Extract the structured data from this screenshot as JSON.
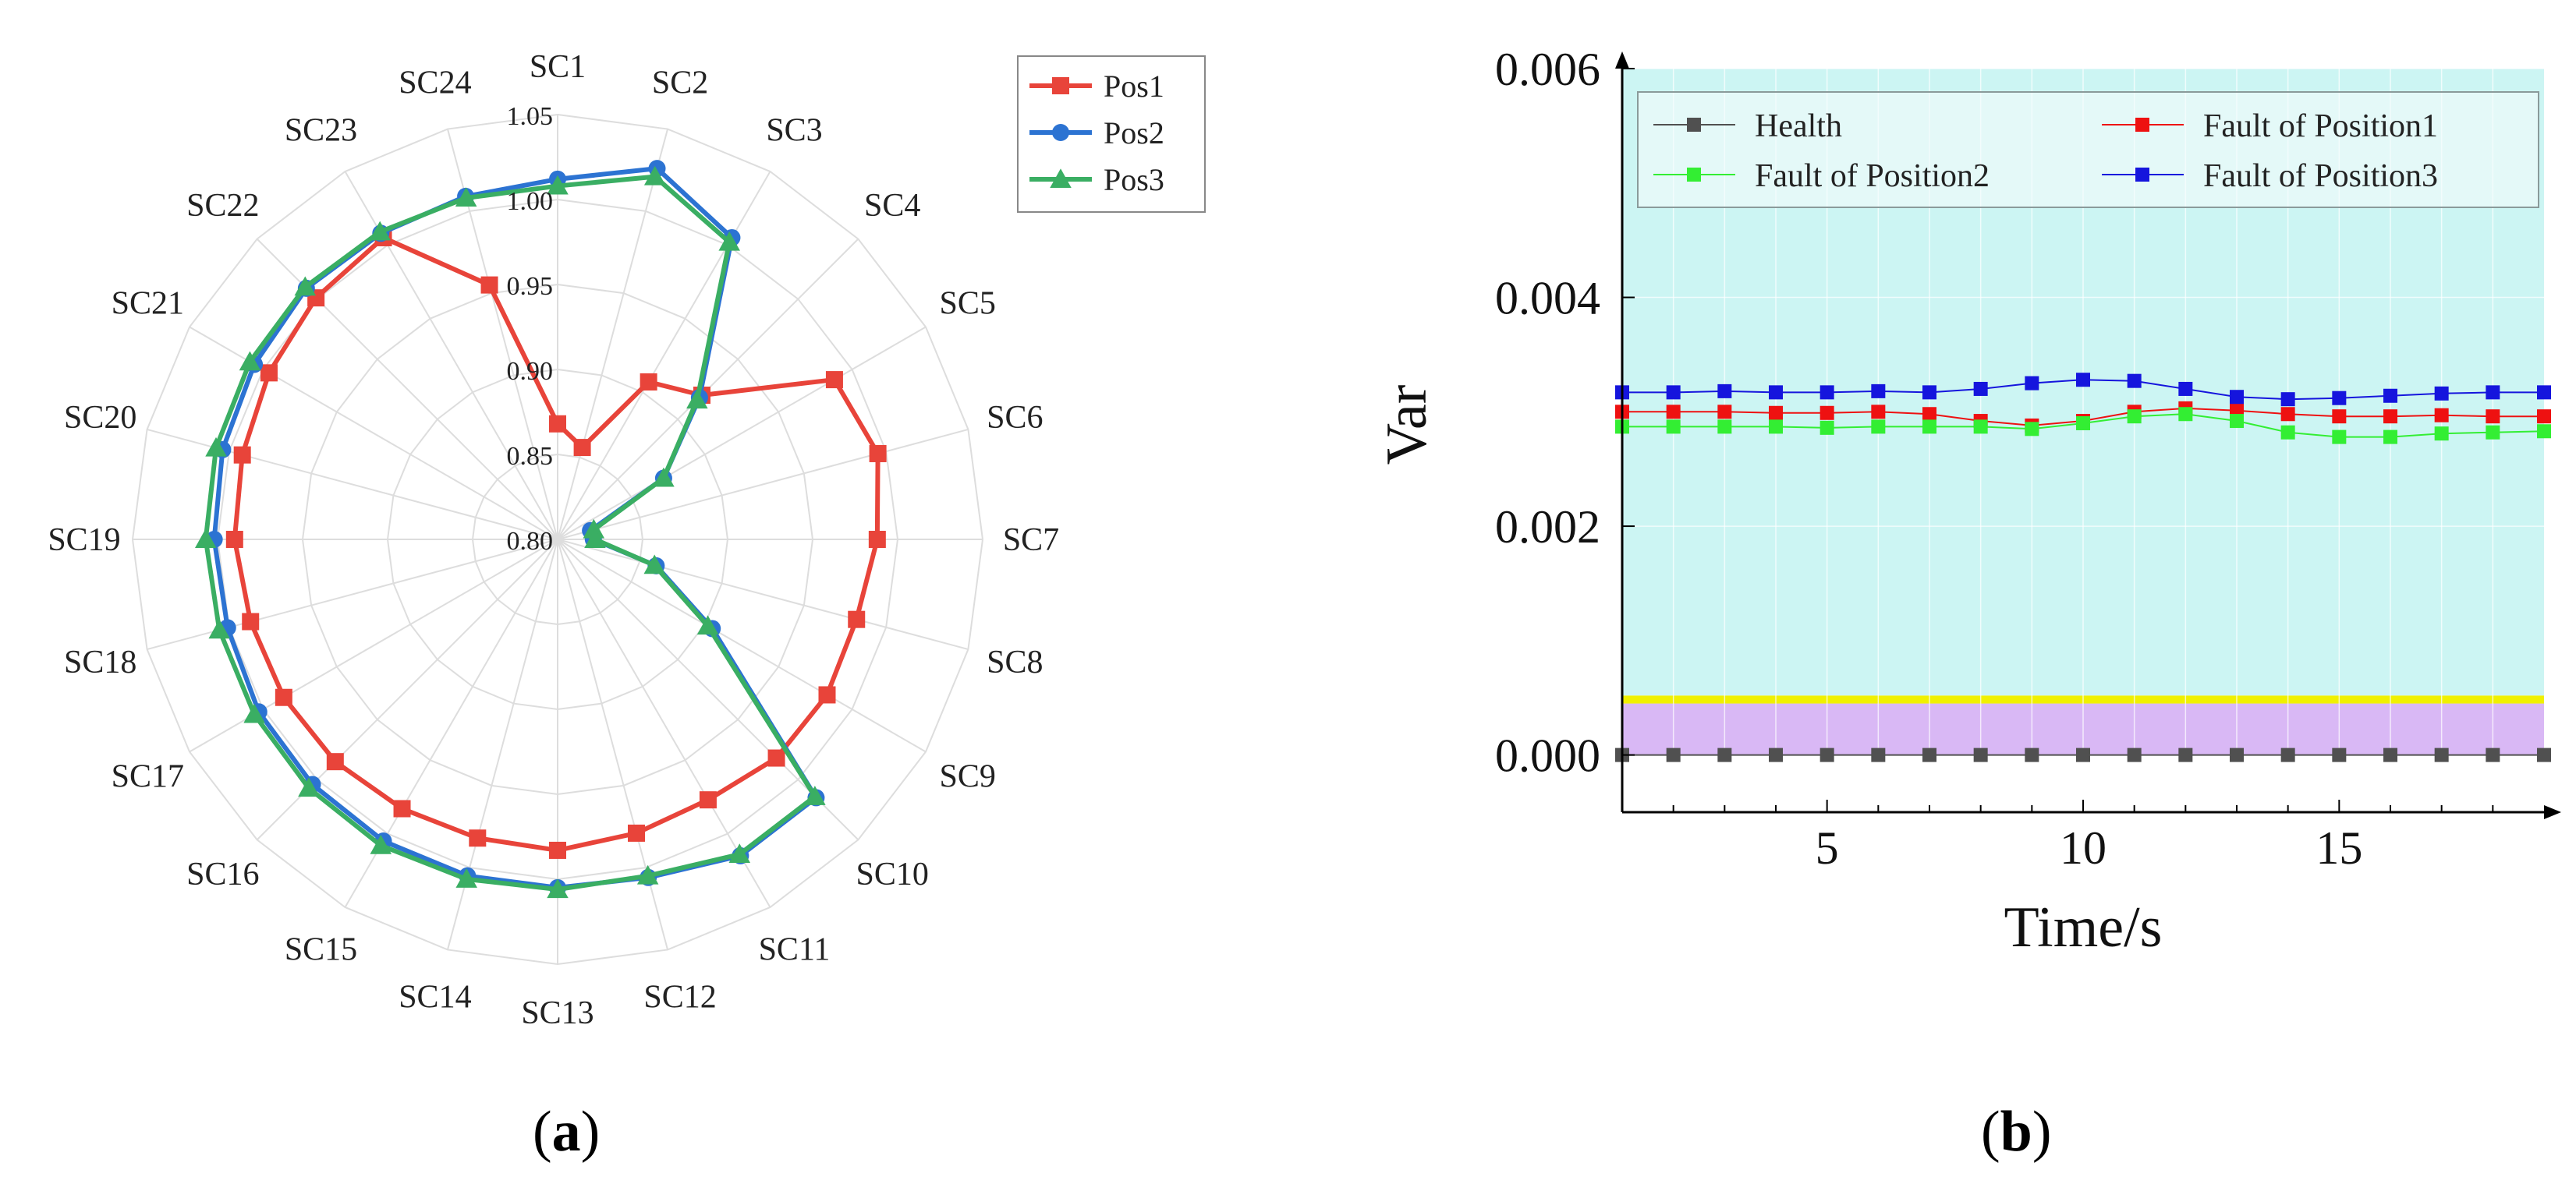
{
  "figure": {
    "panel_a_label": "a",
    "panel_b_label": "b"
  },
  "chart_data": [
    {
      "type": "radar",
      "title": "",
      "categories": [
        "SC1",
        "SC2",
        "SC3",
        "SC4",
        "SC5",
        "SC6",
        "SC7",
        "SC8",
        "SC9",
        "SC10",
        "SC11",
        "SC12",
        "SC13",
        "SC14",
        "SC15",
        "SC16",
        "SC17",
        "SC18",
        "SC19",
        "SC20",
        "SC21",
        "SC22",
        "SC23",
        "SC24"
      ],
      "radial_range": [
        0.8,
        1.05
      ],
      "radial_ticks": [
        "0.80",
        "0.85",
        "0.90",
        "0.95",
        "1.00",
        "1.05"
      ],
      "radial_tick_values": [
        0.8,
        0.85,
        0.9,
        0.95,
        1.0,
        1.05
      ],
      "legend_position": "top-right",
      "series": [
        {
          "name": "Pos1",
          "color": "#e8443a",
          "marker": "square",
          "values": [
            0.868,
            0.856,
            0.907,
            0.92,
            0.988,
            0.995,
            0.988,
            0.982,
            0.983,
            0.982,
            0.977,
            0.979,
            0.983,
            0.982,
            0.983,
            0.985,
            0.986,
            0.987,
            0.99,
            0.992,
            0.996,
            1.001,
            1.005,
            0.955
          ]
        },
        {
          "name": "Pos2",
          "color": "#2c73d2",
          "marker": "circle",
          "values": [
            1.012,
            1.026,
            1.005,
            0.918,
            0.872,
            0.82,
            0.821,
            0.86,
            0.905,
            1.015,
            1.015,
            1.006,
            1.005,
            1.005,
            1.005,
            1.004,
            1.003,
            1.001,
            1.002,
            1.004,
            1.006,
            1.009,
            1.008,
            1.009
          ]
        },
        {
          "name": "Pos3",
          "color": "#3aae63",
          "marker": "triangle",
          "values": [
            1.008,
            1.021,
            1.002,
            0.916,
            0.872,
            0.822,
            0.822,
            0.859,
            0.902,
            1.014,
            1.014,
            1.005,
            1.006,
            1.007,
            1.008,
            1.007,
            1.006,
            1.006,
            1.007,
            1.008,
            1.009,
            1.01,
            1.009,
            1.008
          ]
        }
      ]
    },
    {
      "type": "line",
      "title": "",
      "xlabel": "Time/s",
      "ylabel": "Var",
      "xlim": [
        1,
        19
      ],
      "ylim": [
        -0.0005,
        0.006
      ],
      "xticks": [
        5,
        10,
        15
      ],
      "xtick_labels": [
        "5",
        "10",
        "15"
      ],
      "yticks": [
        0.0,
        0.002,
        0.004,
        0.006
      ],
      "ytick_labels": [
        "0.000",
        "0.002",
        "0.004",
        "0.006"
      ],
      "x": [
        1,
        2,
        3,
        4,
        5,
        6,
        7,
        8,
        9,
        10,
        11,
        12,
        13,
        14,
        15,
        16,
        17,
        18,
        19
      ],
      "bands": [
        {
          "name": "normal-band",
          "from": 0.0,
          "to": 0.00045,
          "color": "#d9b8f5"
        },
        {
          "name": "threshold-band",
          "from": 0.00045,
          "to": 0.00052,
          "color": "#f0f000"
        },
        {
          "name": "fault-region",
          "from": 0.00052,
          "to": 0.006,
          "color": "#ccf5f3"
        }
      ],
      "legend_position": "top",
      "series": [
        {
          "name": "Health",
          "color": "#505050",
          "values": [
            0,
            0,
            0,
            0,
            0,
            0,
            0,
            0,
            0,
            0,
            0,
            0,
            0,
            0,
            0,
            0,
            0,
            0,
            0
          ]
        },
        {
          "name": "Fault of Position1",
          "color": "#ee1111",
          "values": [
            0.003,
            0.003,
            0.003,
            0.00299,
            0.00299,
            0.003,
            0.00298,
            0.00292,
            0.00288,
            0.00292,
            0.003,
            0.00303,
            0.00301,
            0.00298,
            0.00296,
            0.00296,
            0.00297,
            0.00296,
            0.00296
          ]
        },
        {
          "name": "Fault of Position2",
          "color": "#33ee33",
          "values": [
            0.00287,
            0.00287,
            0.00287,
            0.00287,
            0.00286,
            0.00287,
            0.00287,
            0.00287,
            0.00285,
            0.0029,
            0.00296,
            0.00298,
            0.00292,
            0.00282,
            0.00278,
            0.00278,
            0.00281,
            0.00282,
            0.00283
          ]
        },
        {
          "name": "Fault of Position3",
          "color": "#1515dd",
          "values": [
            0.00317,
            0.00317,
            0.00318,
            0.00317,
            0.00317,
            0.00318,
            0.00317,
            0.0032,
            0.00325,
            0.00328,
            0.00327,
            0.0032,
            0.00313,
            0.00311,
            0.00312,
            0.00314,
            0.00316,
            0.00317,
            0.00317
          ]
        }
      ]
    }
  ]
}
